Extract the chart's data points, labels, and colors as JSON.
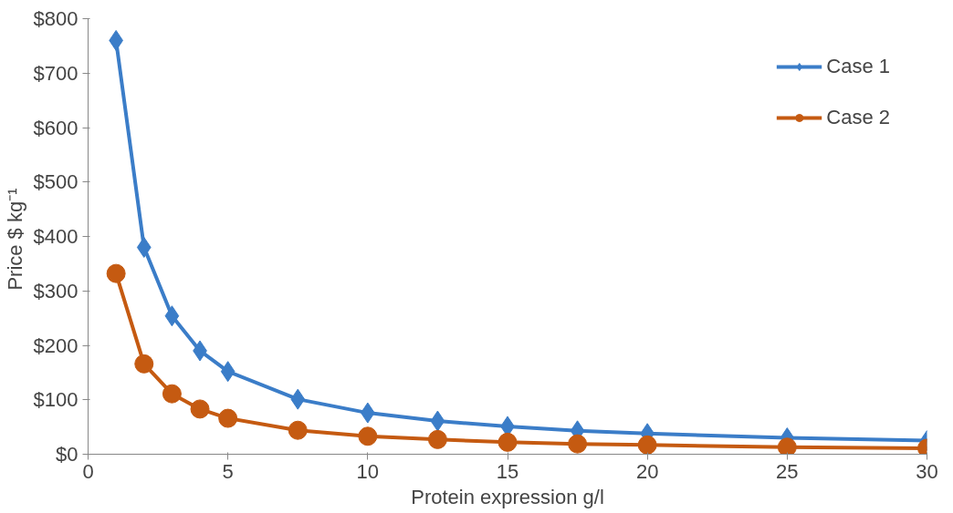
{
  "chart_data": {
    "type": "line",
    "xlabel": "Protein expression g/l",
    "ylabel": "Price  $ kg⁻¹",
    "x": [
      1,
      2,
      3,
      4,
      5,
      7.5,
      10,
      12.5,
      15,
      17.5,
      20,
      25,
      30
    ],
    "series": [
      {
        "name": "Case 1",
        "color": "#3b7dc8",
        "marker": "diamond",
        "values": [
          760,
          380,
          254,
          190,
          152,
          101,
          76,
          61,
          51,
          43,
          38,
          30,
          25
        ]
      },
      {
        "name": "Case 2",
        "color": "#c55a11",
        "marker": "circle",
        "values": [
          332,
          166,
          111,
          83,
          66,
          44,
          33,
          27,
          22,
          19,
          17,
          13,
          11
        ]
      }
    ],
    "xlim": [
      0,
      30
    ],
    "xticks": [
      0,
      5,
      10,
      15,
      20,
      25,
      30
    ],
    "ylim": [
      0,
      800
    ],
    "yticks": [
      {
        "value": 0,
        "label": "$0"
      },
      {
        "value": 100,
        "label": "$100"
      },
      {
        "value": 200,
        "label": "$200"
      },
      {
        "value": 300,
        "label": "$300"
      },
      {
        "value": 400,
        "label": "$400"
      },
      {
        "value": 500,
        "label": "$500"
      },
      {
        "value": 600,
        "label": "$600"
      },
      {
        "value": 700,
        "label": "$700"
      },
      {
        "value": 800,
        "label": "$800"
      }
    ],
    "grid": false,
    "legend": "top right",
    "line_style": "solid"
  }
}
